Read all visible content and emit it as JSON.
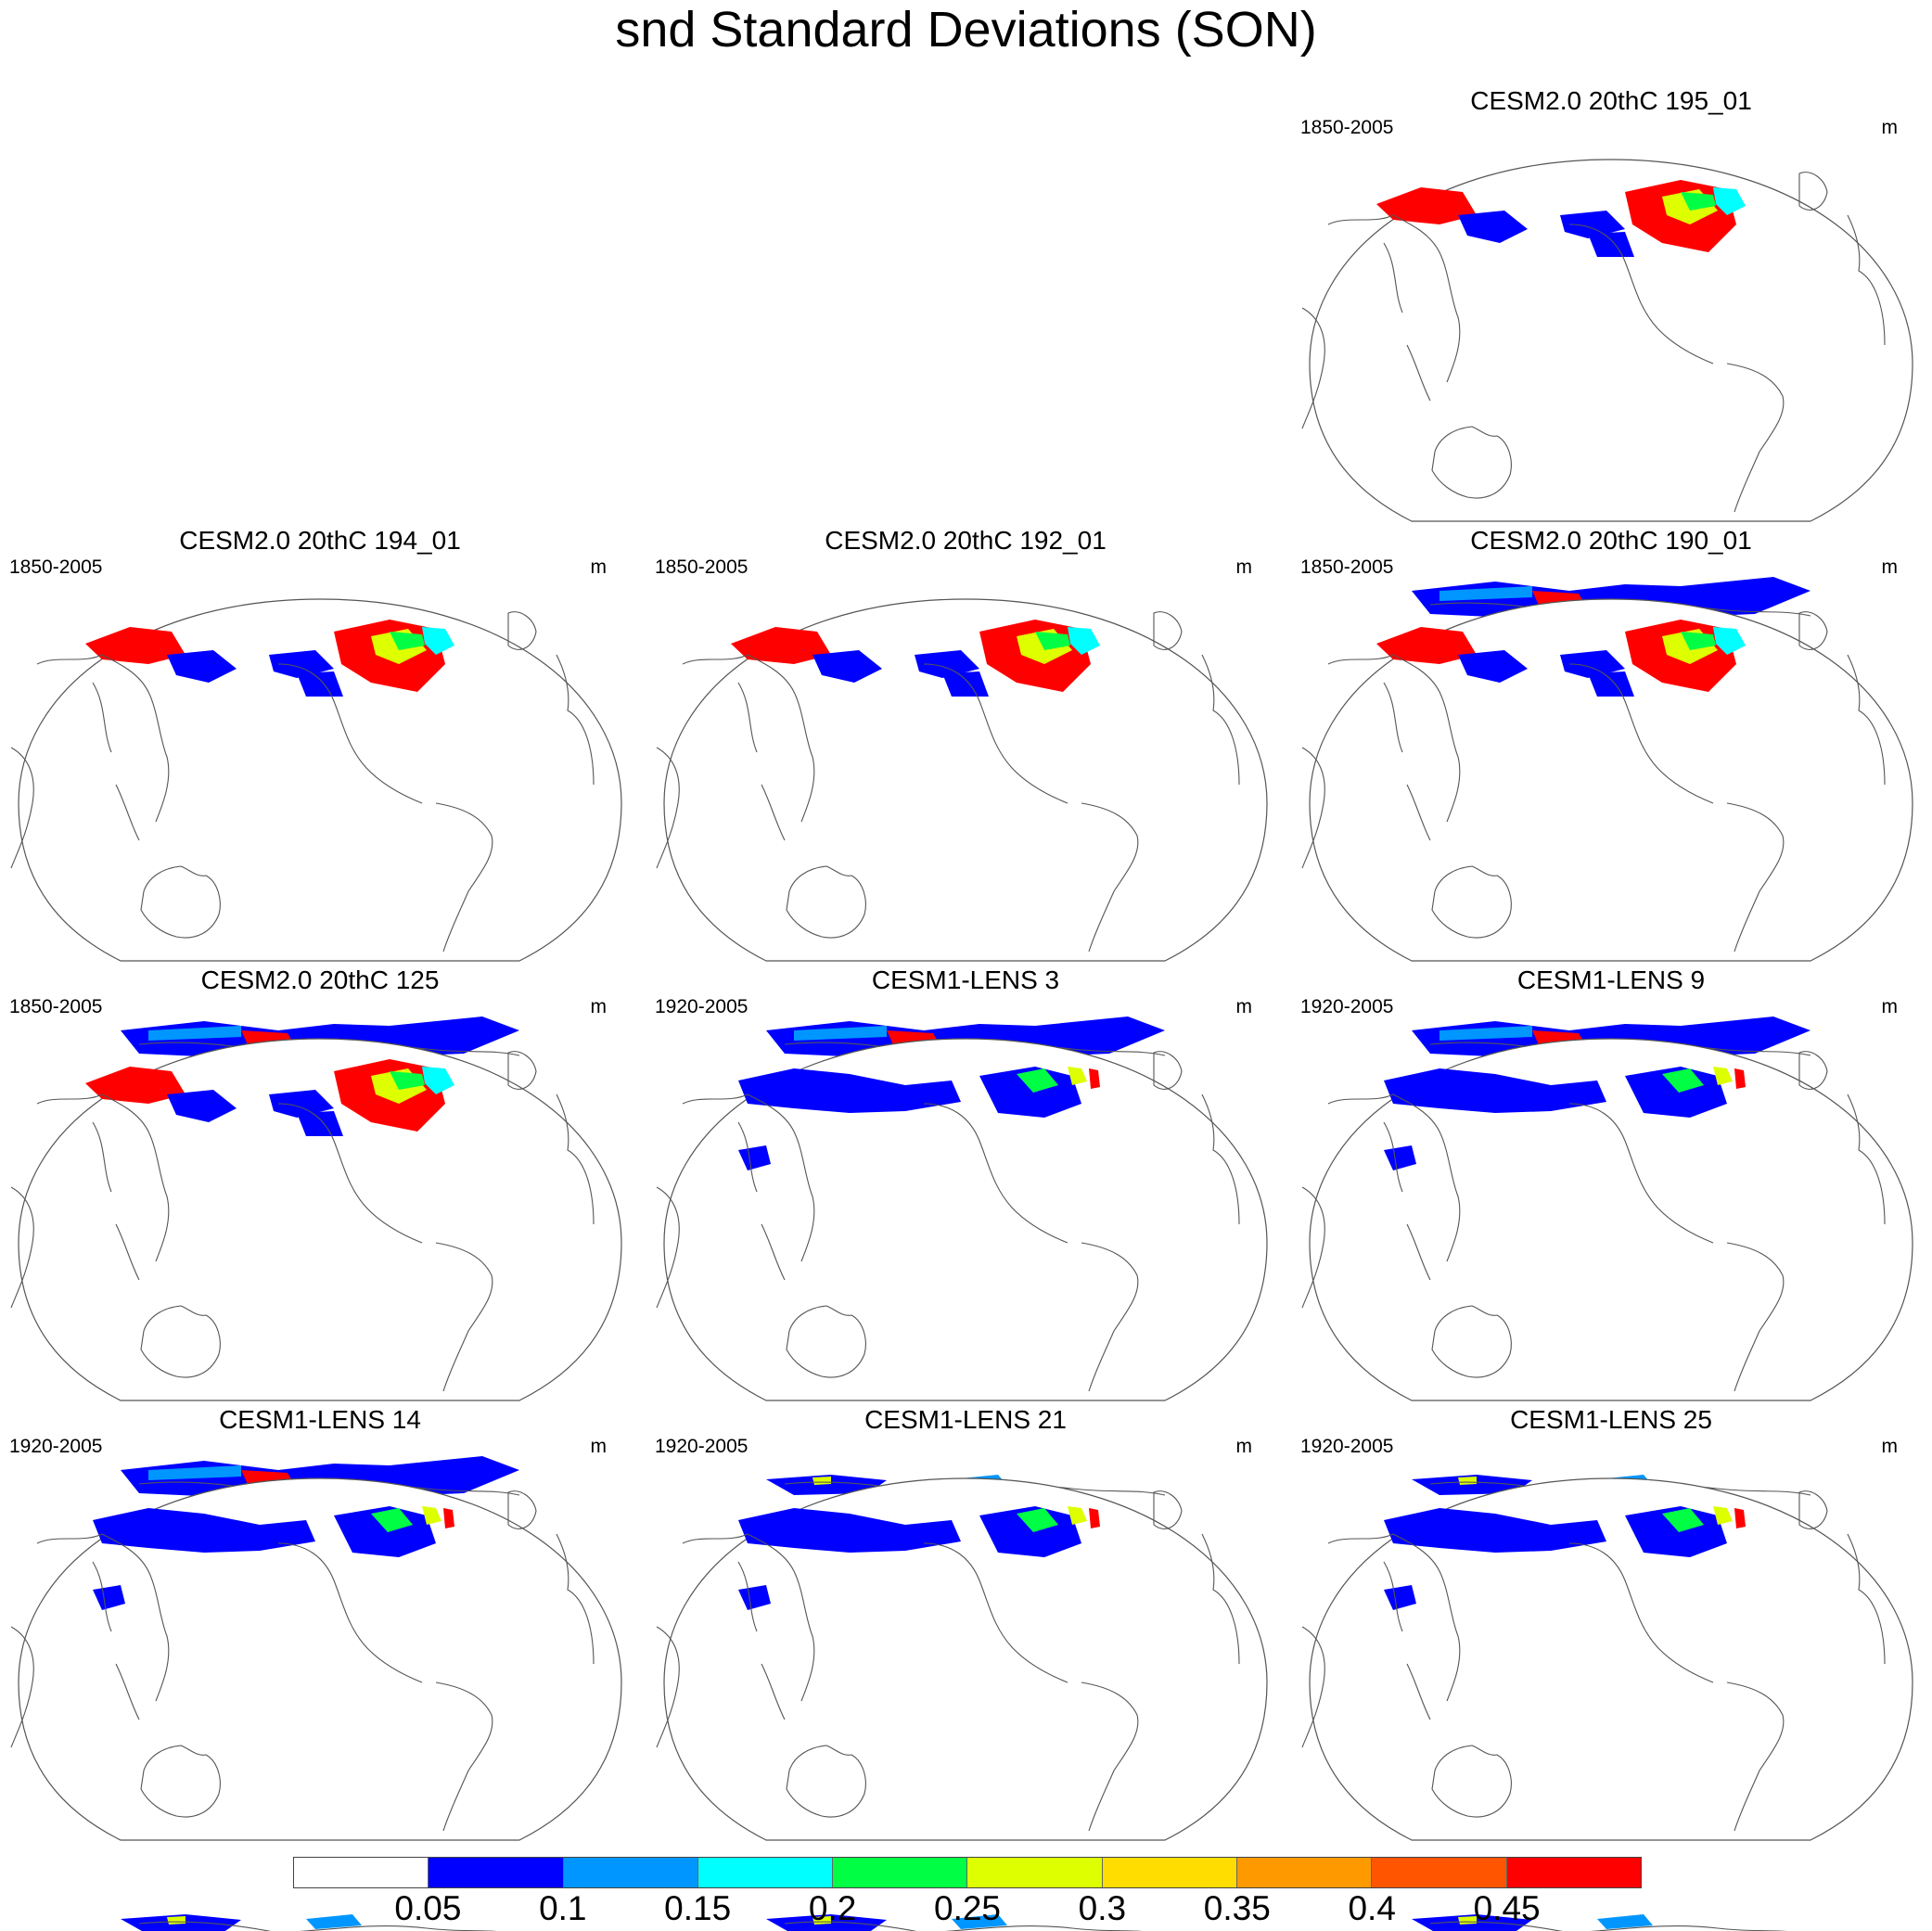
{
  "figure": {
    "title": "snd Standard Deviations (SON)"
  },
  "panels": [
    {
      "title": "CESM2.0 20thC 195_01",
      "period": "1850-2005",
      "units": "m",
      "style": "strong"
    },
    {
      "title": "CESM2.0 20thC 194_01",
      "period": "1850-2005",
      "units": "m",
      "style": "strong"
    },
    {
      "title": "CESM2.0 20thC 192_01",
      "period": "1850-2005",
      "units": "m",
      "style": "strong"
    },
    {
      "title": "CESM2.0 20thC 190_01",
      "period": "1850-2005",
      "units": "m",
      "style": "strong"
    },
    {
      "title": "CESM2.0 20thC 125",
      "period": "1850-2005",
      "units": "m",
      "style": "strong"
    },
    {
      "title": "CESM1-LENS 3",
      "period": "1920-2005",
      "units": "m",
      "style": "weak"
    },
    {
      "title": "CESM1-LENS 9",
      "period": "1920-2005",
      "units": "m",
      "style": "weak"
    },
    {
      "title": "CESM1-LENS 14",
      "period": "1920-2005",
      "units": "m",
      "style": "weak"
    },
    {
      "title": "CESM1-LENS 21",
      "period": "1920-2005",
      "units": "m",
      "style": "weak"
    },
    {
      "title": "CESM1-LENS 25",
      "period": "1920-2005",
      "units": "m",
      "style": "weak"
    }
  ],
  "colorbar": {
    "colors": [
      "#ffffff",
      "#0000ff",
      "#0096ff",
      "#00ffff",
      "#00ff44",
      "#ddff00",
      "#ffdd00",
      "#ff9900",
      "#ff5500",
      "#ff0000"
    ],
    "labels": [
      "0.05",
      "0.1",
      "0.15",
      "0.2",
      "0.25",
      "0.3",
      "0.35",
      "0.4",
      "0.45"
    ]
  }
}
